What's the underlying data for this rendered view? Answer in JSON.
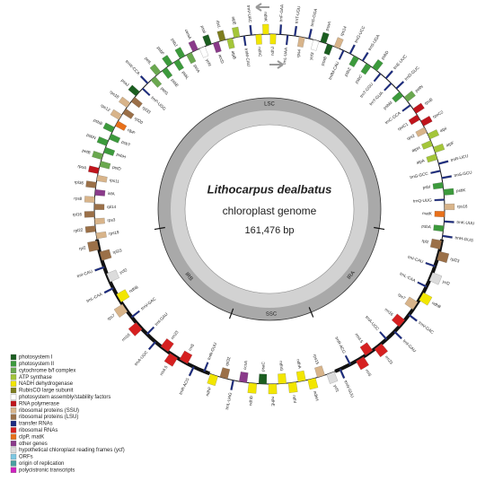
{
  "title": "Lithocarpus dealbatus",
  "subtitle": "chloroplast genome",
  "length": "161,476 bp",
  "legend": [
    {
      "label": "photosystem I",
      "color": "#1b5e20"
    },
    {
      "label": "photosystem II",
      "color": "#3c9a3c"
    },
    {
      "label": "cytochrome b/f complex",
      "color": "#6aa84f"
    },
    {
      "label": "ATP synthase",
      "color": "#a4c639"
    },
    {
      "label": "NADH dehydrogenase",
      "color": "#f2e600"
    },
    {
      "label": "RubisCO large subunit",
      "color": "#7d7d1e"
    },
    {
      "label": "photosystem assembly/stability factors",
      "color": "#ffffff"
    },
    {
      "label": "RNA polymerase",
      "color": "#c0141c"
    },
    {
      "label": "ribosomal proteins (SSU)",
      "color": "#d8b48a"
    },
    {
      "label": "ribosomal proteins (LSU)",
      "color": "#9b7048"
    },
    {
      "label": "transfer RNAs",
      "color": "#1a2a80"
    },
    {
      "label": "ribosomal RNAs",
      "color": "#d62020"
    },
    {
      "label": "clpP, matK",
      "color": "#e8701a"
    },
    {
      "label": "other genes",
      "color": "#8a3a8a"
    },
    {
      "label": "hypothetical chloroplast reading frames (ycf)",
      "color": "#dcdcdc"
    },
    {
      "label": "ORFs",
      "color": "#7ec8e3"
    },
    {
      "label": "origin of replication",
      "color": "#4aa0a0"
    },
    {
      "label": "polycistronic transcripts",
      "color": "#d020c0"
    }
  ],
  "regions": [
    {
      "name": "LSC",
      "genes": [
        {
          "label": "trnH-GUG",
          "color": "#1a2a80"
        },
        {
          "label": "psbA",
          "color": "#3c9a3c"
        },
        {
          "label": "trnK-UUU",
          "color": "#1a2a80"
        },
        {
          "label": "matK",
          "color": "#e8701a"
        },
        {
          "label": "rps16",
          "color": "#d8b48a"
        },
        {
          "label": "trnQ-UUG",
          "color": "#1a2a80"
        },
        {
          "label": "psbK",
          "color": "#3c9a3c"
        },
        {
          "label": "psbI",
          "color": "#3c9a3c"
        },
        {
          "label": "trnS-GCU",
          "color": "#1a2a80"
        },
        {
          "label": "trnG-GCC",
          "color": "#1a2a80"
        },
        {
          "label": "trnR-UCU",
          "color": "#1a2a80"
        },
        {
          "label": "atpA",
          "color": "#a4c639"
        },
        {
          "label": "atpF",
          "color": "#a4c639"
        },
        {
          "label": "atpH",
          "color": "#a4c639"
        },
        {
          "label": "atpI",
          "color": "#a4c639"
        },
        {
          "label": "rps2",
          "color": "#d8b48a"
        },
        {
          "label": "rpoC2",
          "color": "#c0141c"
        },
        {
          "label": "rpoC1",
          "color": "#c0141c"
        },
        {
          "label": "rpoB",
          "color": "#c0141c"
        },
        {
          "label": "trnC-GCA",
          "color": "#1a2a80"
        },
        {
          "label": "petN",
          "color": "#6aa84f"
        },
        {
          "label": "psbM",
          "color": "#3c9a3c"
        },
        {
          "label": "trnD-GUC",
          "color": "#1a2a80"
        },
        {
          "label": "trnY-GUA",
          "color": "#1a2a80"
        },
        {
          "label": "trnE-UUC",
          "color": "#1a2a80"
        },
        {
          "label": "trnT-GGU",
          "color": "#1a2a80"
        },
        {
          "label": "psbD",
          "color": "#3c9a3c"
        },
        {
          "label": "psbC",
          "color": "#3c9a3c"
        },
        {
          "label": "trnS-UGA",
          "color": "#1a2a80"
        },
        {
          "label": "psbZ",
          "color": "#3c9a3c"
        },
        {
          "label": "trnG-UCC",
          "color": "#1a2a80"
        },
        {
          "label": "trnfM-CAU",
          "color": "#1a2a80"
        },
        {
          "label": "rps14",
          "color": "#d8b48a"
        },
        {
          "label": "psaB",
          "color": "#1b5e20"
        },
        {
          "label": "psaA",
          "color": "#1b5e20"
        },
        {
          "label": "ycf3",
          "color": "#ffffff"
        },
        {
          "label": "trnS-GGA",
          "color": "#1a2a80"
        },
        {
          "label": "rps4",
          "color": "#d8b48a"
        },
        {
          "label": "trnT-UGU",
          "color": "#1a2a80"
        },
        {
          "label": "trnL-UAA",
          "color": "#1a2a80"
        },
        {
          "label": "trnF-GAA",
          "color": "#1a2a80"
        },
        {
          "label": "ndhJ",
          "color": "#f2e600"
        },
        {
          "label": "ndhK",
          "color": "#f2e600"
        },
        {
          "label": "ndhC",
          "color": "#f2e600"
        },
        {
          "label": "trnV-UAC",
          "color": "#1a2a80"
        },
        {
          "label": "trnM-CAU",
          "color": "#1a2a80"
        },
        {
          "label": "atpE",
          "color": "#a4c639"
        },
        {
          "label": "atpB",
          "color": "#a4c639"
        },
        {
          "label": "rbcL",
          "color": "#7d7d1e"
        },
        {
          "label": "accD",
          "color": "#8a3a8a"
        },
        {
          "label": "psaI",
          "color": "#1b5e20"
        },
        {
          "label": "ycf4",
          "color": "#ffffff"
        },
        {
          "label": "cemA",
          "color": "#8a3a8a"
        },
        {
          "label": "petA",
          "color": "#6aa84f"
        },
        {
          "label": "psbJ",
          "color": "#3c9a3c"
        },
        {
          "label": "psbL",
          "color": "#3c9a3c"
        },
        {
          "label": "psbF",
          "color": "#3c9a3c"
        },
        {
          "label": "psbE",
          "color": "#3c9a3c"
        },
        {
          "label": "petL",
          "color": "#6aa84f"
        },
        {
          "label": "petG",
          "color": "#6aa84f"
        },
        {
          "label": "trnW-CCA",
          "color": "#1a2a80"
        },
        {
          "label": "trnP-UGG",
          "color": "#1a2a80"
        },
        {
          "label": "psaJ",
          "color": "#1b5e20"
        },
        {
          "label": "rpl33",
          "color": "#9b7048"
        },
        {
          "label": "rps18",
          "color": "#d8b48a"
        },
        {
          "label": "rpl20",
          "color": "#9b7048"
        },
        {
          "label": "rps12",
          "color": "#d8b48a"
        },
        {
          "label": "clpP",
          "color": "#e8701a"
        },
        {
          "label": "psbB",
          "color": "#3c9a3c"
        },
        {
          "label": "psbT",
          "color": "#3c9a3c"
        },
        {
          "label": "psbN",
          "color": "#3c9a3c"
        },
        {
          "label": "psbH",
          "color": "#3c9a3c"
        },
        {
          "label": "petB",
          "color": "#6aa84f"
        },
        {
          "label": "petD",
          "color": "#6aa84f"
        },
        {
          "label": "rpoA",
          "color": "#c0141c"
        },
        {
          "label": "rps11",
          "color": "#d8b48a"
        },
        {
          "label": "rpl36",
          "color": "#9b7048"
        },
        {
          "label": "infA",
          "color": "#8a3a8a"
        },
        {
          "label": "rps8",
          "color": "#d8b48a"
        },
        {
          "label": "rpl14",
          "color": "#9b7048"
        },
        {
          "label": "rpl16",
          "color": "#9b7048"
        },
        {
          "label": "rps3",
          "color": "#d8b48a"
        },
        {
          "label": "rpl22",
          "color": "#9b7048"
        },
        {
          "label": "rps19",
          "color": "#d8b48a"
        }
      ]
    },
    {
      "name": "IRB",
      "genes": [
        {
          "label": "rpl2",
          "color": "#9b7048"
        },
        {
          "label": "rpl23",
          "color": "#9b7048"
        },
        {
          "label": "trnI-CAU",
          "color": "#1a2a80"
        },
        {
          "label": "ycf2",
          "color": "#dcdcdc"
        },
        {
          "label": "trnL-CAA",
          "color": "#1a2a80"
        },
        {
          "label": "ndhB",
          "color": "#f2e600"
        },
        {
          "label": "rps7",
          "color": "#d8b48a"
        },
        {
          "label": "trnV-GAC",
          "color": "#1a2a80"
        },
        {
          "label": "rrn16",
          "color": "#d62020"
        },
        {
          "label": "trnI-GAU",
          "color": "#1a2a80"
        },
        {
          "label": "trnA-UGC",
          "color": "#1a2a80"
        },
        {
          "label": "rrn23",
          "color": "#d62020"
        },
        {
          "label": "rrn4.5",
          "color": "#d62020"
        },
        {
          "label": "rrn5",
          "color": "#d62020"
        },
        {
          "label": "trnR-ACG",
          "color": "#1a2a80"
        },
        {
          "label": "trnN-GUU",
          "color": "#1a2a80"
        }
      ]
    },
    {
      "name": "SSC",
      "genes": [
        {
          "label": "ndhF",
          "color": "#f2e600"
        },
        {
          "label": "rpl32",
          "color": "#9b7048"
        },
        {
          "label": "trnL-UAG",
          "color": "#1a2a80"
        },
        {
          "label": "ccsA",
          "color": "#8a3a8a"
        },
        {
          "label": "ndhD",
          "color": "#f2e600"
        },
        {
          "label": "psaC",
          "color": "#1b5e20"
        },
        {
          "label": "ndhE",
          "color": "#f2e600"
        },
        {
          "label": "ndhG",
          "color": "#f2e600"
        },
        {
          "label": "ndhI",
          "color": "#f2e600"
        },
        {
          "label": "ndhA",
          "color": "#f2e600"
        },
        {
          "label": "ndhH",
          "color": "#f2e600"
        },
        {
          "label": "rps15",
          "color": "#d8b48a"
        },
        {
          "label": "ycf1",
          "color": "#dcdcdc"
        }
      ]
    },
    {
      "name": "IRA",
      "genes": [
        {
          "label": "trnN-GUU",
          "color": "#1a2a80"
        },
        {
          "label": "trnR-ACG",
          "color": "#1a2a80"
        },
        {
          "label": "rrn5",
          "color": "#d62020"
        },
        {
          "label": "rrn4.5",
          "color": "#d62020"
        },
        {
          "label": "rrn23",
          "color": "#d62020"
        },
        {
          "label": "trnA-UGC",
          "color": "#1a2a80"
        },
        {
          "label": "trnI-GAU",
          "color": "#1a2a80"
        },
        {
          "label": "rrn16",
          "color": "#d62020"
        },
        {
          "label": "trnV-GAC",
          "color": "#1a2a80"
        },
        {
          "label": "rps7",
          "color": "#d8b48a"
        },
        {
          "label": "ndhB",
          "color": "#f2e600"
        },
        {
          "label": "trnL-CAA",
          "color": "#1a2a80"
        },
        {
          "label": "ycf2",
          "color": "#dcdcdc"
        },
        {
          "label": "trnI-CAU",
          "color": "#1a2a80"
        },
        {
          "label": "rpl23",
          "color": "#9b7048"
        },
        {
          "label": "rpl2",
          "color": "#9b7048"
        }
      ]
    }
  ]
}
